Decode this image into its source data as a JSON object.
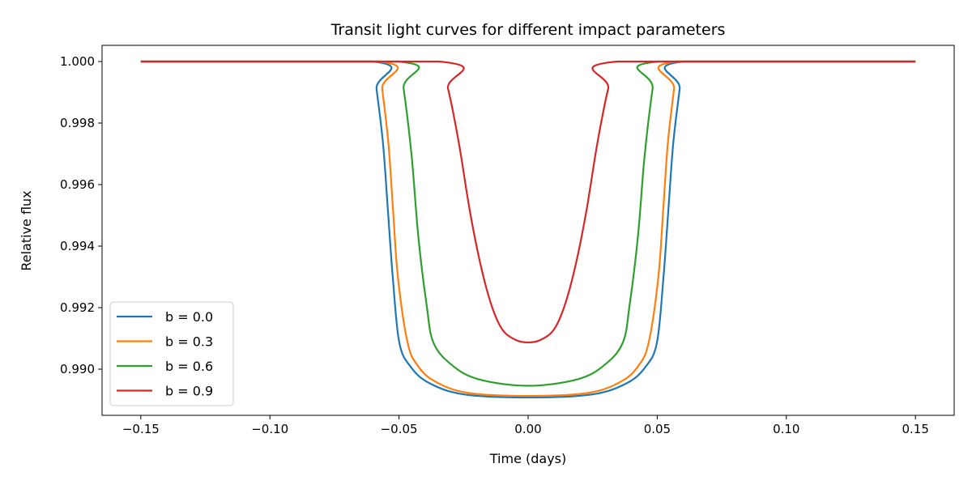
{
  "chart_data": {
    "type": "line",
    "title": "Transit light curves for different impact parameters",
    "xlabel": "Time (days)",
    "ylabel": "Relative flux",
    "xlim": [
      -0.165,
      0.165
    ],
    "ylim": [
      0.9885,
      1.000526
    ],
    "xticks": [
      -0.15,
      -0.1,
      -0.05,
      0.0,
      0.05,
      0.1,
      0.15
    ],
    "xtick_labels": [
      "−0.15",
      "−0.10",
      "−0.05",
      "0.00",
      "0.05",
      "0.10",
      "0.15"
    ],
    "yticks": [
      0.99,
      0.992,
      0.994,
      0.996,
      0.998,
      1.0
    ],
    "ytick_labels": [
      "0.990",
      "0.992",
      "0.994",
      "0.996",
      "0.998",
      "1.000"
    ],
    "grid": false,
    "legend_placement": "lower-left",
    "series": [
      {
        "name": "b = 0.0",
        "color": "#1f77b4",
        "x": [
          -0.15,
          -0.06,
          -0.0587,
          -0.0562,
          -0.0543,
          -0.0524,
          -0.0499,
          -0.0455,
          -0.0383,
          -0.0248,
          0.0,
          0.0248,
          0.0383,
          0.0455,
          0.0499,
          0.0524,
          0.0543,
          0.0562,
          0.0587,
          0.06,
          0.15
        ],
        "y": [
          1.0,
          1.0,
          0.99911,
          0.99734,
          0.99516,
          0.99297,
          0.99087,
          0.99008,
          0.98955,
          0.98918,
          0.98908,
          0.98918,
          0.98955,
          0.99008,
          0.99087,
          0.99297,
          0.99516,
          0.99734,
          0.99911,
          1.0,
          1.0
        ]
      },
      {
        "name": "b = 0.3",
        "color": "#ff7f0e",
        "x": [
          -0.15,
          -0.0577,
          -0.0565,
          -0.0541,
          -0.0523,
          -0.0504,
          -0.0467,
          -0.0428,
          -0.0362,
          -0.0235,
          0.0,
          0.0235,
          0.0362,
          0.0428,
          0.0467,
          0.0504,
          0.0523,
          0.0541,
          0.0565,
          0.0577,
          0.15
        ],
        "y": [
          1.0,
          1.0,
          0.99911,
          0.99734,
          0.99516,
          0.99297,
          0.99087,
          0.99012,
          0.98961,
          0.98923,
          0.98913,
          0.98923,
          0.98961,
          0.99012,
          0.99087,
          0.99297,
          0.99516,
          0.99734,
          0.99911,
          1.0,
          1.0
        ]
      },
      {
        "name": "b = 0.6",
        "color": "#2ca02c",
        "x": [
          -0.15,
          -0.0503,
          -0.0482,
          -0.0451,
          -0.0425,
          -0.0393,
          -0.0367,
          -0.0299,
          -0.0195,
          0.0,
          0.0195,
          0.0299,
          0.0367,
          0.0393,
          0.0425,
          0.0451,
          0.0482,
          0.0503,
          0.15
        ],
        "y": [
          1.0,
          1.0,
          0.99911,
          0.99692,
          0.99429,
          0.99208,
          0.99087,
          0.99016,
          0.98968,
          0.98946,
          0.98968,
          0.99016,
          0.99087,
          0.99208,
          0.99429,
          0.99692,
          0.99911,
          1.0,
          1.0
        ]
      },
      {
        "name": "b = 0.9",
        "color": "#d62728",
        "x": [
          -0.15,
          -0.0346,
          -0.031,
          -0.0268,
          -0.0226,
          -0.0184,
          -0.0142,
          -0.01,
          -0.0048,
          0.0,
          0.0048,
          0.01,
          0.0142,
          0.0184,
          0.0226,
          0.0268,
          0.031,
          0.0346,
          0.15
        ],
        "y": [
          1.0,
          1.0,
          0.99911,
          0.99734,
          0.99516,
          0.99339,
          0.99208,
          0.99129,
          0.99095,
          0.99087,
          0.99095,
          0.99129,
          0.99208,
          0.99339,
          0.99516,
          0.99734,
          0.99911,
          1.0,
          1.0
        ]
      }
    ]
  }
}
